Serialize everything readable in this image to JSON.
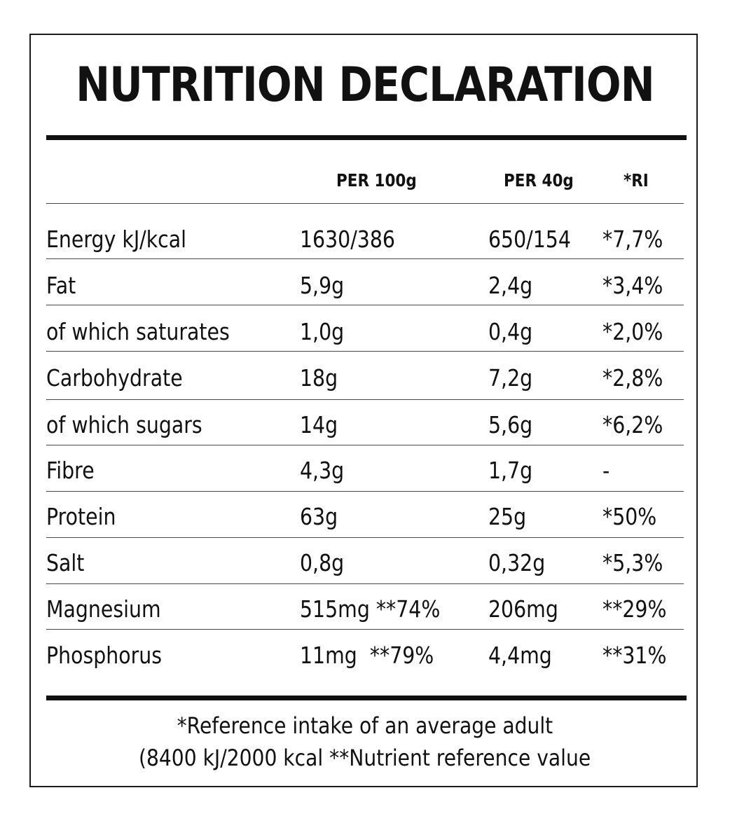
{
  "label": {
    "title": "NUTRITION DECLARATION",
    "columns": {
      "per_100g": "PER 100g",
      "per_40g": "PER 40g",
      "ri": "*RI"
    },
    "rows": [
      {
        "name": "Energy kJ/kcal",
        "per_100g": "1630/386",
        "per_40g": "650/154",
        "ri": "*7,7%"
      },
      {
        "name": "Fat",
        "per_100g": "5,9g",
        "per_40g": "2,4g",
        "ri": "*3,4%"
      },
      {
        "name": "of which saturates",
        "per_100g": "1,0g",
        "per_40g": "0,4g",
        "ri": "*2,0%"
      },
      {
        "name": "Carbohydrate",
        "per_100g": "18g",
        "per_40g": "7,2g",
        "ri": "*2,8%"
      },
      {
        "name": "of which sugars",
        "per_100g": "14g",
        "per_40g": "5,6g",
        "ri": "*6,2%"
      },
      {
        "name": "Fibre",
        "per_100g": "4,3g",
        "per_40g": "1,7g",
        "ri": "-"
      },
      {
        "name": "Protein",
        "per_100g": "63g",
        "per_40g": "25g",
        "ri": "*50%"
      },
      {
        "name": "Salt",
        "per_100g": "0,8g",
        "per_40g": "0,32g",
        "ri": "*5,3%"
      },
      {
        "name": "Magnesium",
        "per_100g": "515mg **74%",
        "per_40g": "206mg",
        "ri": "**29%"
      },
      {
        "name": "Phosphorus",
        "per_100g": "11mg  **79%",
        "per_40g": "4,4mg",
        "ri": "**31%"
      }
    ],
    "footnote_line1": "*Reference intake of an average adult",
    "footnote_line2": "(8400 kJ/2000 kcal **Nutrient reference value"
  }
}
